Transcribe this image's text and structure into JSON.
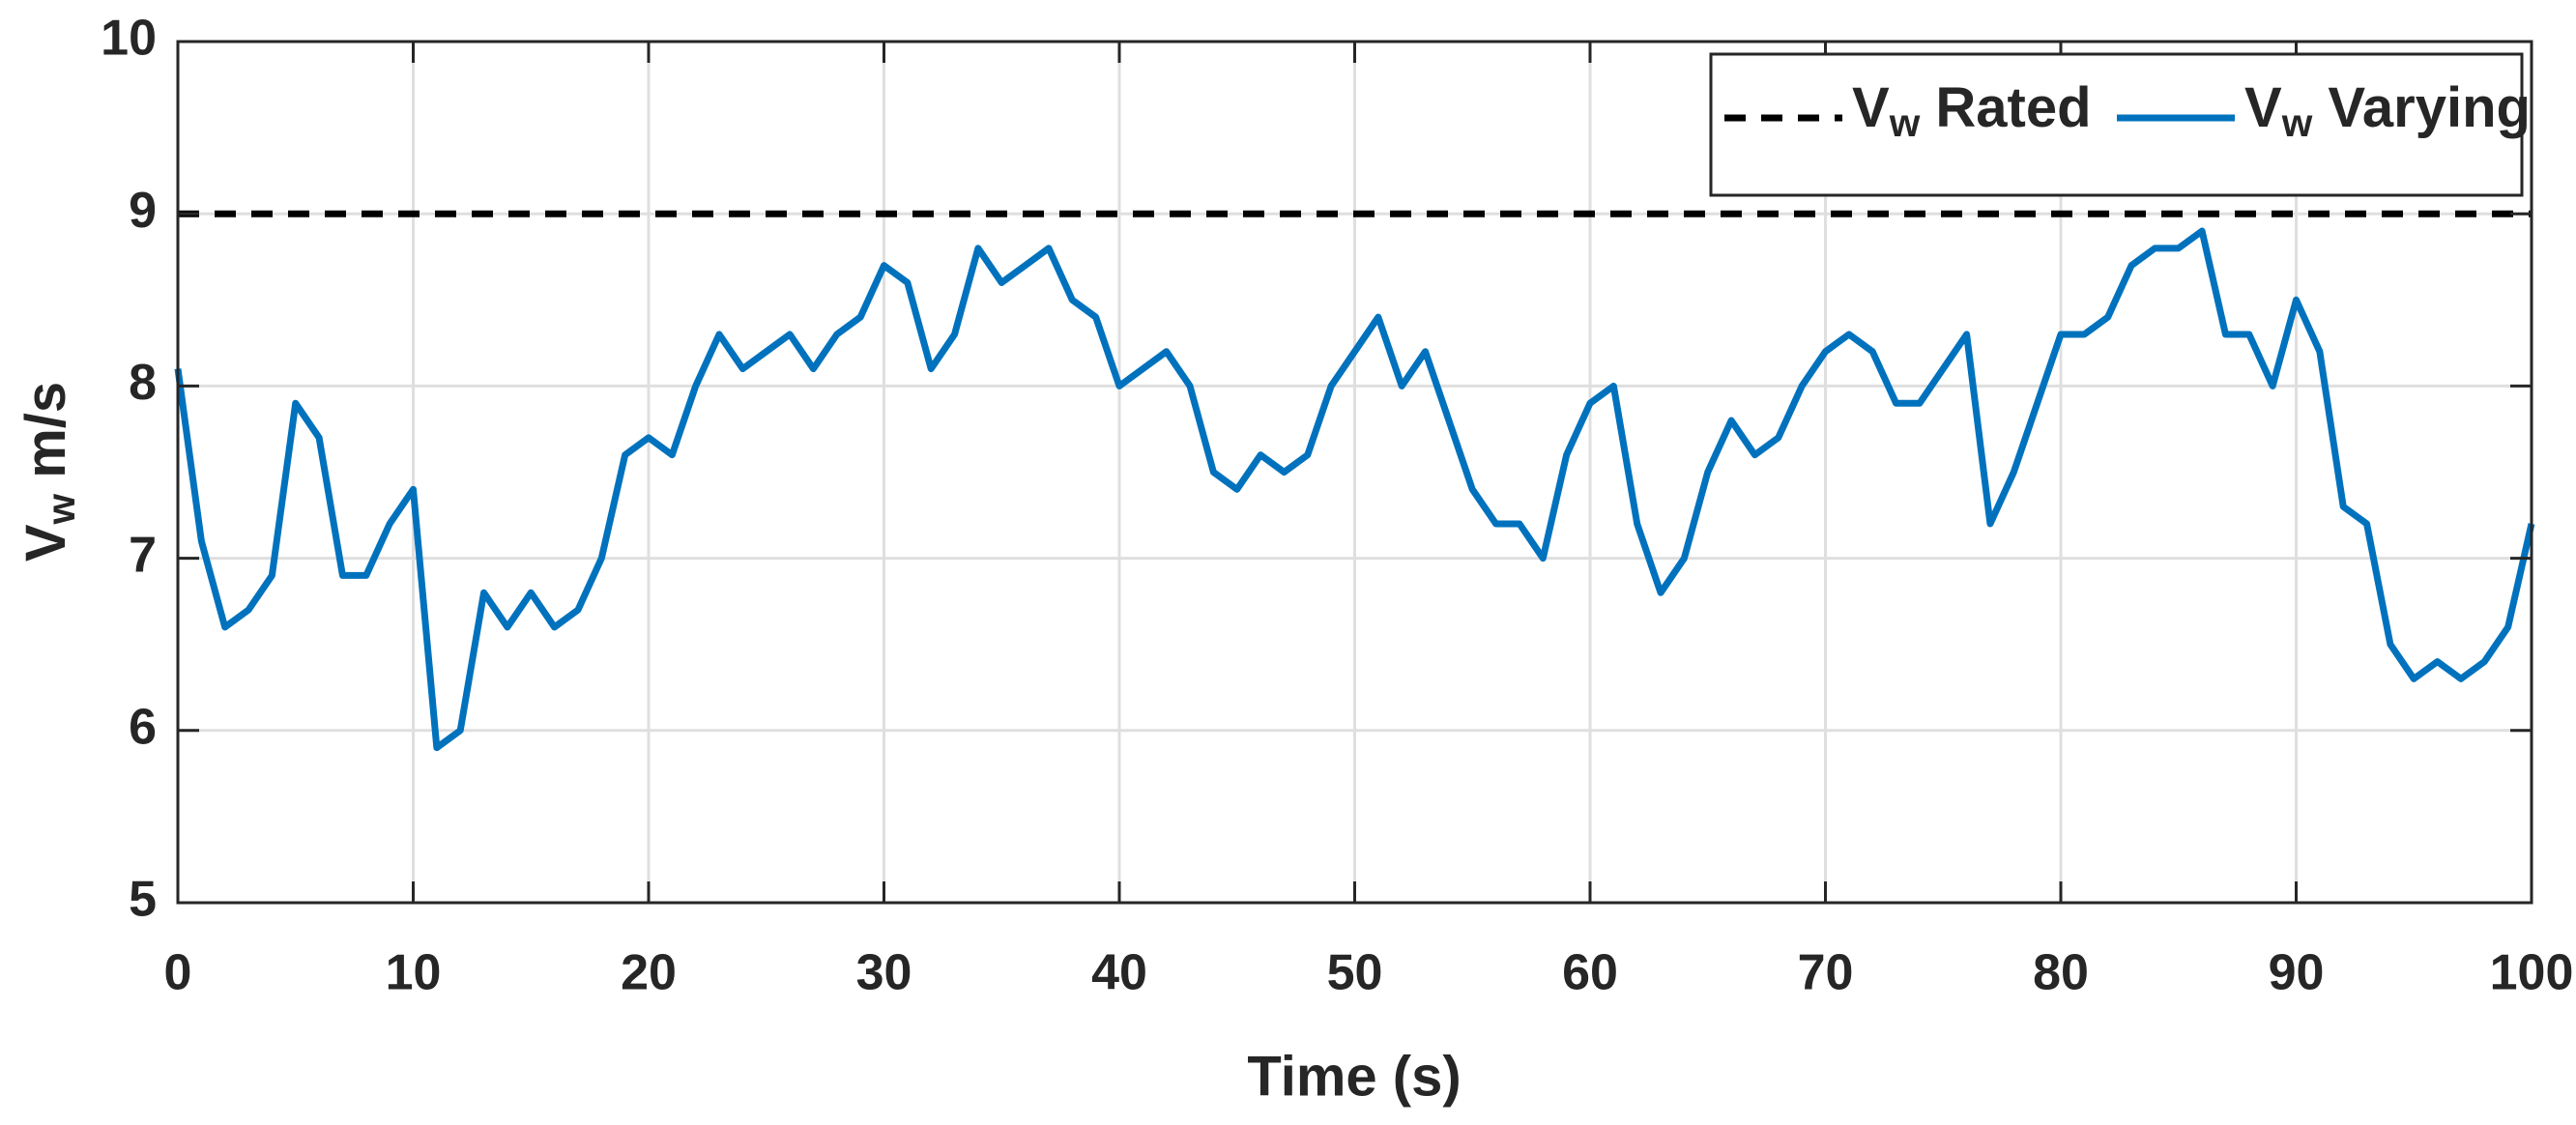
{
  "chart_data": {
    "type": "line",
    "xlabel": "Time (s)",
    "ylabel": "Vw m/s",
    "x": [
      0,
      1,
      2,
      3,
      4,
      5,
      6,
      7,
      8,
      9,
      10,
      11,
      12,
      13,
      14,
      15,
      16,
      17,
      18,
      19,
      20,
      21,
      22,
      23,
      24,
      25,
      26,
      27,
      28,
      29,
      30,
      31,
      32,
      33,
      34,
      35,
      36,
      37,
      38,
      39,
      40,
      41,
      42,
      43,
      44,
      45,
      46,
      47,
      48,
      49,
      50,
      51,
      52,
      53,
      54,
      55,
      56,
      57,
      58,
      59,
      60,
      61,
      62,
      63,
      64,
      65,
      66,
      67,
      68,
      69,
      70,
      71,
      72,
      73,
      74,
      75,
      76,
      77,
      78,
      79,
      80,
      81,
      82,
      83,
      84,
      85,
      86,
      87,
      88,
      89,
      90,
      91,
      92,
      93,
      94,
      95,
      96,
      97,
      98,
      99,
      100
    ],
    "series": [
      {
        "name": "Vw Rated",
        "color": "#000000",
        "dash": true,
        "values": [
          9,
          9,
          9,
          9,
          9,
          9,
          9,
          9,
          9,
          9,
          9,
          9,
          9,
          9,
          9,
          9,
          9,
          9,
          9,
          9,
          9,
          9,
          9,
          9,
          9,
          9,
          9,
          9,
          9,
          9,
          9,
          9,
          9,
          9,
          9,
          9,
          9,
          9,
          9,
          9,
          9,
          9,
          9,
          9,
          9,
          9,
          9,
          9,
          9,
          9,
          9,
          9,
          9,
          9,
          9,
          9,
          9,
          9,
          9,
          9,
          9,
          9,
          9,
          9,
          9,
          9,
          9,
          9,
          9,
          9,
          9,
          9,
          9,
          9,
          9,
          9,
          9,
          9,
          9,
          9,
          9,
          9,
          9,
          9,
          9,
          9,
          9,
          9,
          9,
          9,
          9,
          9,
          9,
          9,
          9,
          9,
          9,
          9,
          9,
          9,
          9
        ]
      },
      {
        "name": "Vw Varying",
        "color": "#0072bd",
        "dash": false,
        "values": [
          8.1,
          7.1,
          6.6,
          6.7,
          6.9,
          7.9,
          7.7,
          6.9,
          6.9,
          7.2,
          7.4,
          5.9,
          6.0,
          6.8,
          6.6,
          6.8,
          6.6,
          6.7,
          7.0,
          7.6,
          7.7,
          7.6,
          8.0,
          8.3,
          8.1,
          8.2,
          8.3,
          8.1,
          8.3,
          8.4,
          8.7,
          8.6,
          8.1,
          8.3,
          8.8,
          8.6,
          8.7,
          8.8,
          8.5,
          8.4,
          8.0,
          8.1,
          8.2,
          8.0,
          7.5,
          7.4,
          7.6,
          7.5,
          7.6,
          8.0,
          8.2,
          8.4,
          8.0,
          8.2,
          7.8,
          7.4,
          7.2,
          7.2,
          7.0,
          7.6,
          7.9,
          8.0,
          7.2,
          6.8,
          7.0,
          7.5,
          7.8,
          7.6,
          7.7,
          8.0,
          8.2,
          8.3,
          8.2,
          7.9,
          7.9,
          8.1,
          8.3,
          7.2,
          7.5,
          7.9,
          8.3,
          8.3,
          8.4,
          8.7,
          8.8,
          8.8,
          8.9,
          8.3,
          8.3,
          8.0,
          8.5,
          8.2,
          7.3,
          7.2,
          6.5,
          6.3,
          6.4,
          6.3,
          6.4,
          6.6,
          7.2
        ]
      }
    ],
    "xlim": [
      0,
      100
    ],
    "xticks": [
      0,
      10,
      20,
      30,
      40,
      50,
      60,
      70,
      80,
      90,
      100
    ],
    "ylim": [
      5,
      10
    ],
    "yticks": [
      5,
      6,
      7,
      8,
      9,
      10
    ],
    "grid": true,
    "legend": "upper right"
  }
}
